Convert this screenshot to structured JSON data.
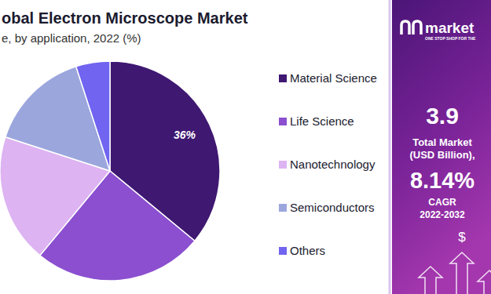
{
  "chart_data": {
    "type": "pie",
    "title": "obal Electron Microscope Market",
    "subtitle": "e, by application, 2022 (%)",
    "categories": [
      "Material Science",
      "Life Science",
      "Nanotechnology",
      "Semiconductors",
      "Others"
    ],
    "values": [
      36,
      25,
      19,
      15,
      5
    ],
    "value_labels": [
      "36%",
      null,
      null,
      null,
      null
    ],
    "colors": [
      "#3f1872",
      "#8b4fd0",
      "#ddb3f2",
      "#9ba6dd",
      "#7064f0"
    ],
    "legend": "right",
    "annotations": [
      "market",
      "ONE STOP SHOP FOR THE",
      "3.9",
      "Total Market",
      "(USD Billion),",
      "8.14%",
      "CAGR",
      "2022-2032",
      "$"
    ]
  }
}
